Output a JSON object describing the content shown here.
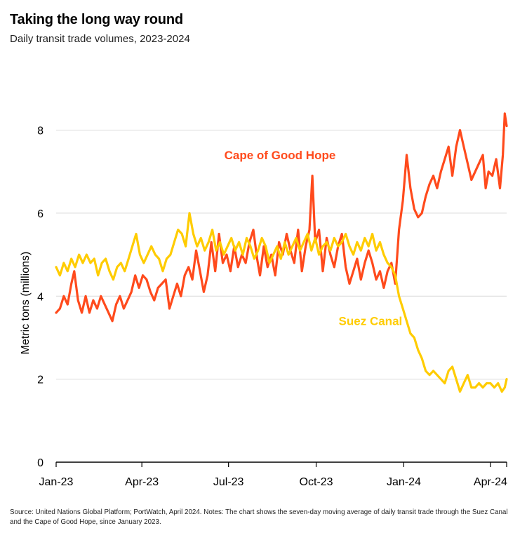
{
  "title": "Taking the long way round",
  "subtitle": "Daily transit trade volumes, 2023-2024",
  "footnote": "Source: United Nations Global Platform; PortWatch, April 2024. Notes: The chart shows the seven-day moving average of daily transit trade through the Suez Canal and the Cape of Good Hope, since January 2023.",
  "colors": {
    "cape": "#FF4A1C",
    "suez": "#FFCC00",
    "grid": "#d9d9d9",
    "axis": "#000000"
  },
  "chart_data": {
    "type": "line",
    "title": "Taking the long way round",
    "subtitle": "Daily transit trade volumes, 2023-2024",
    "xlabel": "",
    "ylabel": "Metric tons (millions)",
    "ylim": [
      0,
      8.6
    ],
    "yticks": [
      0,
      2,
      4,
      6,
      8
    ],
    "xtick_labels": [
      "Jan-23",
      "Apr-23",
      "Jul-23",
      "Oct-23",
      "Jan-24",
      "Apr-24"
    ],
    "xtick_dates": [
      "2023-01-01",
      "2023-04-01",
      "2023-07-01",
      "2023-10-01",
      "2024-01-01",
      "2024-04-01"
    ],
    "xlim": [
      "2023-01-01",
      "2024-04-18"
    ],
    "grid": "horizontal",
    "legend": "inline labels",
    "series": [
      {
        "name": "Cape of Good Hope",
        "color": "#FF4A1C",
        "points": [
          [
            "2023-01-01",
            3.6
          ],
          [
            "2023-01-05",
            3.7
          ],
          [
            "2023-01-09",
            4.0
          ],
          [
            "2023-01-13",
            3.8
          ],
          [
            "2023-01-17",
            4.3
          ],
          [
            "2023-01-20",
            4.6
          ],
          [
            "2023-01-24",
            3.9
          ],
          [
            "2023-01-28",
            3.6
          ],
          [
            "2023-02-01",
            4.0
          ],
          [
            "2023-02-05",
            3.6
          ],
          [
            "2023-02-09",
            3.9
          ],
          [
            "2023-02-13",
            3.7
          ],
          [
            "2023-02-17",
            4.0
          ],
          [
            "2023-02-21",
            3.8
          ],
          [
            "2023-02-25",
            3.6
          ],
          [
            "2023-03-01",
            3.4
          ],
          [
            "2023-03-05",
            3.8
          ],
          [
            "2023-03-09",
            4.0
          ],
          [
            "2023-03-13",
            3.7
          ],
          [
            "2023-03-17",
            3.9
          ],
          [
            "2023-03-21",
            4.1
          ],
          [
            "2023-03-25",
            4.5
          ],
          [
            "2023-03-29",
            4.2
          ],
          [
            "2023-04-02",
            4.5
          ],
          [
            "2023-04-06",
            4.4
          ],
          [
            "2023-04-10",
            4.1
          ],
          [
            "2023-04-14",
            3.9
          ],
          [
            "2023-04-18",
            4.2
          ],
          [
            "2023-04-22",
            4.3
          ],
          [
            "2023-04-26",
            4.4
          ],
          [
            "2023-04-30",
            3.7
          ],
          [
            "2023-05-04",
            4.0
          ],
          [
            "2023-05-08",
            4.3
          ],
          [
            "2023-05-12",
            4.0
          ],
          [
            "2023-05-16",
            4.5
          ],
          [
            "2023-05-20",
            4.7
          ],
          [
            "2023-05-24",
            4.4
          ],
          [
            "2023-05-28",
            5.1
          ],
          [
            "2023-06-01",
            4.6
          ],
          [
            "2023-06-05",
            4.1
          ],
          [
            "2023-06-09",
            4.5
          ],
          [
            "2023-06-13",
            5.3
          ],
          [
            "2023-06-17",
            4.6
          ],
          [
            "2023-06-21",
            5.5
          ],
          [
            "2023-06-25",
            4.8
          ],
          [
            "2023-06-29",
            5.0
          ],
          [
            "2023-07-03",
            4.6
          ],
          [
            "2023-07-07",
            5.2
          ],
          [
            "2023-07-11",
            4.7
          ],
          [
            "2023-07-15",
            5.0
          ],
          [
            "2023-07-19",
            4.8
          ],
          [
            "2023-07-23",
            5.3
          ],
          [
            "2023-07-27",
            5.6
          ],
          [
            "2023-07-31",
            4.9
          ],
          [
            "2023-08-03",
            4.5
          ],
          [
            "2023-08-07",
            5.2
          ],
          [
            "2023-08-11",
            4.7
          ],
          [
            "2023-08-15",
            5.0
          ],
          [
            "2023-08-19",
            4.5
          ],
          [
            "2023-08-23",
            5.3
          ],
          [
            "2023-08-27",
            5.0
          ],
          [
            "2023-08-31",
            5.5
          ],
          [
            "2023-09-04",
            5.1
          ],
          [
            "2023-09-08",
            4.8
          ],
          [
            "2023-09-12",
            5.6
          ],
          [
            "2023-09-16",
            4.6
          ],
          [
            "2023-09-20",
            5.2
          ],
          [
            "2023-09-24",
            5.6
          ],
          [
            "2023-09-27",
            6.9
          ],
          [
            "2023-09-30",
            5.3
          ],
          [
            "2023-10-04",
            5.6
          ],
          [
            "2023-10-08",
            4.6
          ],
          [
            "2023-10-12",
            5.4
          ],
          [
            "2023-10-16",
            5.0
          ],
          [
            "2023-10-20",
            4.7
          ],
          [
            "2023-10-24",
            5.2
          ],
          [
            "2023-10-28",
            5.5
          ],
          [
            "2023-11-01",
            4.7
          ],
          [
            "2023-11-05",
            4.3
          ],
          [
            "2023-11-09",
            4.6
          ],
          [
            "2023-11-13",
            4.9
          ],
          [
            "2023-11-17",
            4.4
          ],
          [
            "2023-11-21",
            4.8
          ],
          [
            "2023-11-25",
            5.1
          ],
          [
            "2023-11-29",
            4.8
          ],
          [
            "2023-12-03",
            4.4
          ],
          [
            "2023-12-07",
            4.6
          ],
          [
            "2023-12-11",
            4.2
          ],
          [
            "2023-12-15",
            4.6
          ],
          [
            "2023-12-19",
            4.8
          ],
          [
            "2023-12-23",
            4.3
          ],
          [
            "2023-12-27",
            5.6
          ],
          [
            "2023-12-31",
            6.3
          ],
          [
            "2024-01-04",
            7.4
          ],
          [
            "2024-01-08",
            6.6
          ],
          [
            "2024-01-12",
            6.1
          ],
          [
            "2024-01-16",
            5.9
          ],
          [
            "2024-01-20",
            6.0
          ],
          [
            "2024-01-24",
            6.4
          ],
          [
            "2024-01-28",
            6.7
          ],
          [
            "2024-02-01",
            6.9
          ],
          [
            "2024-02-05",
            6.6
          ],
          [
            "2024-02-09",
            7.0
          ],
          [
            "2024-02-13",
            7.3
          ],
          [
            "2024-02-17",
            7.6
          ],
          [
            "2024-02-21",
            6.9
          ],
          [
            "2024-02-25",
            7.6
          ],
          [
            "2024-02-29",
            8.0
          ],
          [
            "2024-03-04",
            7.6
          ],
          [
            "2024-03-08",
            7.2
          ],
          [
            "2024-03-12",
            6.8
          ],
          [
            "2024-03-16",
            7.0
          ],
          [
            "2024-03-20",
            7.2
          ],
          [
            "2024-03-24",
            7.4
          ],
          [
            "2024-03-27",
            6.6
          ],
          [
            "2024-03-30",
            7.0
          ],
          [
            "2024-04-03",
            6.9
          ],
          [
            "2024-04-07",
            7.3
          ],
          [
            "2024-04-11",
            6.6
          ],
          [
            "2024-04-14",
            7.4
          ],
          [
            "2024-04-16",
            8.4
          ],
          [
            "2024-04-18",
            8.1
          ]
        ]
      },
      {
        "name": "Suez Canal",
        "color": "#FFCC00",
        "points": [
          [
            "2023-01-01",
            4.7
          ],
          [
            "2023-01-05",
            4.5
          ],
          [
            "2023-01-09",
            4.8
          ],
          [
            "2023-01-13",
            4.6
          ],
          [
            "2023-01-17",
            4.9
          ],
          [
            "2023-01-21",
            4.7
          ],
          [
            "2023-01-25",
            5.0
          ],
          [
            "2023-01-29",
            4.8
          ],
          [
            "2023-02-02",
            5.0
          ],
          [
            "2023-02-06",
            4.8
          ],
          [
            "2023-02-10",
            4.9
          ],
          [
            "2023-02-14",
            4.5
          ],
          [
            "2023-02-18",
            4.8
          ],
          [
            "2023-02-22",
            4.9
          ],
          [
            "2023-02-26",
            4.6
          ],
          [
            "2023-03-02",
            4.4
          ],
          [
            "2023-03-06",
            4.7
          ],
          [
            "2023-03-10",
            4.8
          ],
          [
            "2023-03-14",
            4.6
          ],
          [
            "2023-03-18",
            4.9
          ],
          [
            "2023-03-22",
            5.2
          ],
          [
            "2023-03-26",
            5.5
          ],
          [
            "2023-03-30",
            5.0
          ],
          [
            "2023-04-03",
            4.8
          ],
          [
            "2023-04-07",
            5.0
          ],
          [
            "2023-04-11",
            5.2
          ],
          [
            "2023-04-15",
            5.0
          ],
          [
            "2023-04-19",
            4.9
          ],
          [
            "2023-04-23",
            4.6
          ],
          [
            "2023-04-27",
            4.9
          ],
          [
            "2023-05-01",
            5.0
          ],
          [
            "2023-05-05",
            5.3
          ],
          [
            "2023-05-09",
            5.6
          ],
          [
            "2023-05-13",
            5.5
          ],
          [
            "2023-05-17",
            5.2
          ],
          [
            "2023-05-21",
            6.0
          ],
          [
            "2023-05-25",
            5.5
          ],
          [
            "2023-05-29",
            5.2
          ],
          [
            "2023-06-02",
            5.4
          ],
          [
            "2023-06-06",
            5.1
          ],
          [
            "2023-06-10",
            5.3
          ],
          [
            "2023-06-14",
            5.6
          ],
          [
            "2023-06-18",
            5.1
          ],
          [
            "2023-06-22",
            5.3
          ],
          [
            "2023-06-26",
            5.0
          ],
          [
            "2023-06-30",
            5.2
          ],
          [
            "2023-07-04",
            5.4
          ],
          [
            "2023-07-08",
            5.1
          ],
          [
            "2023-07-12",
            5.3
          ],
          [
            "2023-07-16",
            5.0
          ],
          [
            "2023-07-20",
            5.4
          ],
          [
            "2023-07-24",
            5.2
          ],
          [
            "2023-07-28",
            4.9
          ],
          [
            "2023-08-01",
            5.1
          ],
          [
            "2023-08-05",
            5.4
          ],
          [
            "2023-08-09",
            5.2
          ],
          [
            "2023-08-13",
            4.8
          ],
          [
            "2023-08-17",
            5.0
          ],
          [
            "2023-08-21",
            5.2
          ],
          [
            "2023-08-25",
            4.9
          ],
          [
            "2023-08-29",
            5.3
          ],
          [
            "2023-09-02",
            5.0
          ],
          [
            "2023-09-06",
            5.2
          ],
          [
            "2023-09-10",
            5.4
          ],
          [
            "2023-09-14",
            5.1
          ],
          [
            "2023-09-18",
            5.3
          ],
          [
            "2023-09-22",
            5.5
          ],
          [
            "2023-09-26",
            5.1
          ],
          [
            "2023-09-30",
            5.4
          ],
          [
            "2023-10-04",
            5.0
          ],
          [
            "2023-10-08",
            5.2
          ],
          [
            "2023-10-12",
            5.3
          ],
          [
            "2023-10-16",
            5.1
          ],
          [
            "2023-10-20",
            5.4
          ],
          [
            "2023-10-24",
            5.2
          ],
          [
            "2023-10-28",
            5.3
          ],
          [
            "2023-11-01",
            5.5
          ],
          [
            "2023-11-05",
            5.2
          ],
          [
            "2023-11-09",
            5.0
          ],
          [
            "2023-11-13",
            5.3
          ],
          [
            "2023-11-17",
            5.1
          ],
          [
            "2023-11-21",
            5.4
          ],
          [
            "2023-11-25",
            5.2
          ],
          [
            "2023-11-29",
            5.5
          ],
          [
            "2023-12-03",
            5.1
          ],
          [
            "2023-12-07",
            5.3
          ],
          [
            "2023-12-11",
            5.0
          ],
          [
            "2023-12-15",
            4.8
          ],
          [
            "2023-12-19",
            4.7
          ],
          [
            "2023-12-23",
            4.5
          ],
          [
            "2023-12-27",
            4.0
          ],
          [
            "2023-12-31",
            3.7
          ],
          [
            "2024-01-04",
            3.4
          ],
          [
            "2024-01-08",
            3.1
          ],
          [
            "2024-01-12",
            3.0
          ],
          [
            "2024-01-16",
            2.7
          ],
          [
            "2024-01-20",
            2.5
          ],
          [
            "2024-01-24",
            2.2
          ],
          [
            "2024-01-28",
            2.1
          ],
          [
            "2024-02-01",
            2.2
          ],
          [
            "2024-02-05",
            2.1
          ],
          [
            "2024-02-09",
            2.0
          ],
          [
            "2024-02-13",
            1.9
          ],
          [
            "2024-02-17",
            2.2
          ],
          [
            "2024-02-21",
            2.3
          ],
          [
            "2024-02-25",
            2.0
          ],
          [
            "2024-02-29",
            1.7
          ],
          [
            "2024-03-04",
            1.9
          ],
          [
            "2024-03-08",
            2.1
          ],
          [
            "2024-03-12",
            1.8
          ],
          [
            "2024-03-16",
            1.8
          ],
          [
            "2024-03-20",
            1.9
          ],
          [
            "2024-03-24",
            1.8
          ],
          [
            "2024-03-28",
            1.9
          ],
          [
            "2024-04-01",
            1.9
          ],
          [
            "2024-04-05",
            1.8
          ],
          [
            "2024-04-09",
            1.9
          ],
          [
            "2024-04-13",
            1.7
          ],
          [
            "2024-04-16",
            1.8
          ],
          [
            "2024-04-18",
            2.0
          ]
        ]
      }
    ],
    "annotations": [
      {
        "text": "Cape of Good Hope",
        "color": "#FF4A1C",
        "x": "2023-08-24",
        "y": 7.3
      },
      {
        "text": "Suez Canal",
        "color": "#FFCC00",
        "x": "2023-11-27",
        "y": 3.3
      }
    ]
  }
}
